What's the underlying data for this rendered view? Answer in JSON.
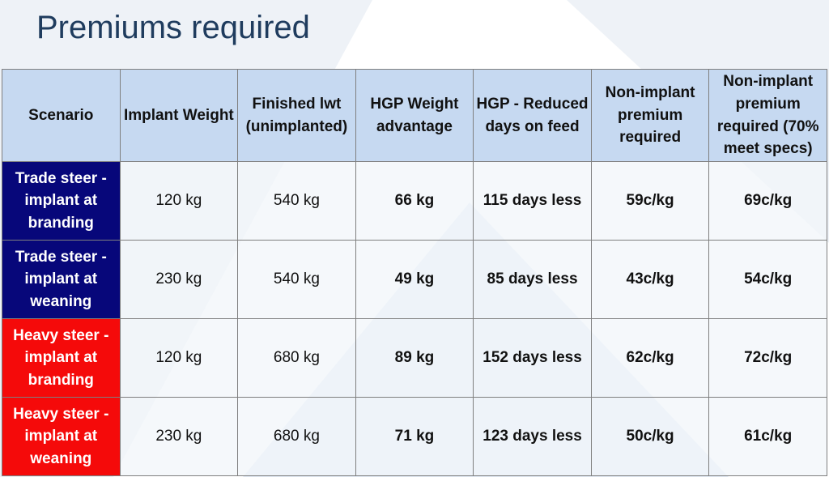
{
  "title": "Premiums required",
  "table": {
    "header": [
      "Scenario",
      "Implant Weight",
      "Finished lwt (unimplanted)",
      "HGP Weight advantage",
      "HGP - Reduced days on feed",
      "Non-implant premium required",
      "Non-implant premium required (70% meet specs)"
    ],
    "rows": [
      [
        "Trade steer - implant at branding",
        "120 kg",
        "540 kg",
        "66 kg",
        "115 days less",
        "59c/kg",
        "69c/kg"
      ],
      [
        "Trade steer - implant at weaning",
        "230 kg",
        "540 kg",
        "49 kg",
        "85 days less",
        "43c/kg",
        "54c/kg"
      ],
      [
        "Heavy steer - implant at branding",
        "120 kg",
        "680 kg",
        "89 kg",
        "152 days less",
        "62c/kg",
        "72c/kg"
      ],
      [
        "Heavy steer - implant at weaning",
        "230 kg",
        "680 kg",
        "71 kg",
        "123 days less",
        "50c/kg",
        "61c/kg"
      ]
    ]
  }
}
